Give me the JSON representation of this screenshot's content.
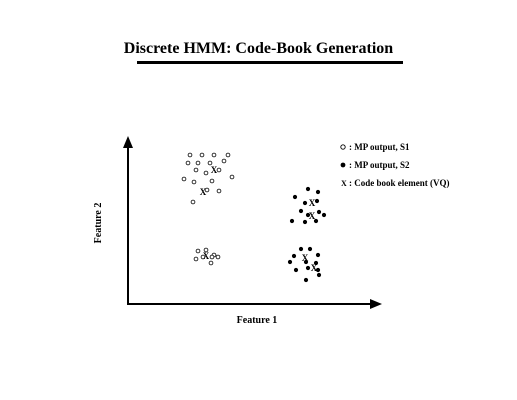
{
  "title": "Discrete HMM: Code-Book Generation",
  "axes": {
    "x_label": "Feature 1",
    "y_label": "Feature 2"
  },
  "legend": [
    {
      "marker": "open-circle",
      "label": ": MP output, S1"
    },
    {
      "marker": "filled-circle",
      "label": ": MP output, S2"
    },
    {
      "marker": "x",
      "label": ": Code book element (VQ)"
    }
  ],
  "codebook_marker": "X",
  "colors": {
    "ink": "#000000",
    "background": "#ffffff"
  },
  "clusters": [
    {
      "name": "cluster-s1-upper",
      "type": "open",
      "points": [
        [
          190,
          155
        ],
        [
          202,
          155
        ],
        [
          214,
          155
        ],
        [
          228,
          155
        ],
        [
          188,
          163
        ],
        [
          198,
          163
        ],
        [
          210,
          163
        ],
        [
          224,
          161
        ],
        [
          196,
          170
        ],
        [
          206,
          173
        ],
        [
          219,
          170
        ],
        [
          232,
          177
        ],
        [
          184,
          179
        ],
        [
          194,
          182
        ],
        [
          212,
          181
        ],
        [
          207,
          190
        ],
        [
          219,
          191
        ],
        [
          193,
          202
        ]
      ],
      "codebook": [
        [
          214,
          170
        ],
        [
          203,
          192
        ]
      ]
    },
    {
      "name": "cluster-s1-lower",
      "type": "open",
      "points": [
        [
          198,
          251
        ],
        [
          206,
          250
        ],
        [
          214,
          255
        ],
        [
          203,
          257
        ],
        [
          212,
          257
        ],
        [
          218,
          257
        ],
        [
          196,
          259
        ],
        [
          211,
          263
        ]
      ],
      "codebook": [
        [
          206,
          256
        ]
      ]
    },
    {
      "name": "cluster-s2-upper",
      "type": "filled",
      "points": [
        [
          308,
          189
        ],
        [
          318,
          192
        ],
        [
          295,
          197
        ],
        [
          305,
          203
        ],
        [
          317,
          201
        ],
        [
          301,
          211
        ],
        [
          319,
          212
        ],
        [
          308,
          215
        ],
        [
          292,
          221
        ],
        [
          305,
          222
        ],
        [
          316,
          221
        ],
        [
          324,
          215
        ]
      ],
      "codebook": [
        [
          312,
          203
        ],
        [
          312,
          216
        ]
      ]
    },
    {
      "name": "cluster-s2-lower",
      "type": "filled",
      "points": [
        [
          301,
          249
        ],
        [
          310,
          249
        ],
        [
          294,
          256
        ],
        [
          318,
          255
        ],
        [
          290,
          262
        ],
        [
          306,
          262
        ],
        [
          316,
          263
        ],
        [
          296,
          270
        ],
        [
          308,
          268
        ],
        [
          318,
          270
        ],
        [
          306,
          280
        ],
        [
          319,
          275
        ]
      ],
      "codebook": [
        [
          305,
          258
        ],
        [
          314,
          268
        ]
      ]
    }
  ]
}
